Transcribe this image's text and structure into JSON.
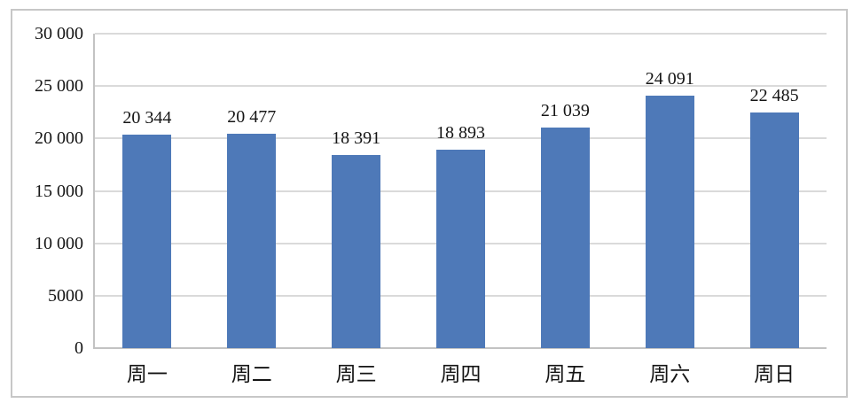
{
  "chart_data": {
    "type": "bar",
    "title": "",
    "xlabel": "",
    "ylabel": "",
    "categories": [
      "周一",
      "周二",
      "周三",
      "周四",
      "周五",
      "周六",
      "周日"
    ],
    "values": [
      20344,
      20477,
      18391,
      18893,
      21039,
      24091,
      22485
    ],
    "data_labels": [
      "20 344",
      "20 477",
      "18 391",
      "18 893",
      "21 039",
      "24 091",
      "22 485"
    ],
    "ylim": [
      0,
      30000
    ],
    "y_ticks": [
      0,
      5000,
      10000,
      15000,
      20000,
      25000,
      30000
    ],
    "y_tick_labels": [
      "0",
      "5000",
      "10 000",
      "15 000",
      "20 000",
      "25 000",
      "30 000"
    ],
    "grid": true,
    "legend": false,
    "colors": {
      "bar_fill": "#4e79b8",
      "gridline": "#dadada",
      "axis_line": "#c3c3c3",
      "frame_border": "#c7c7c7",
      "text": "#151515",
      "background": "#ffffff"
    }
  }
}
